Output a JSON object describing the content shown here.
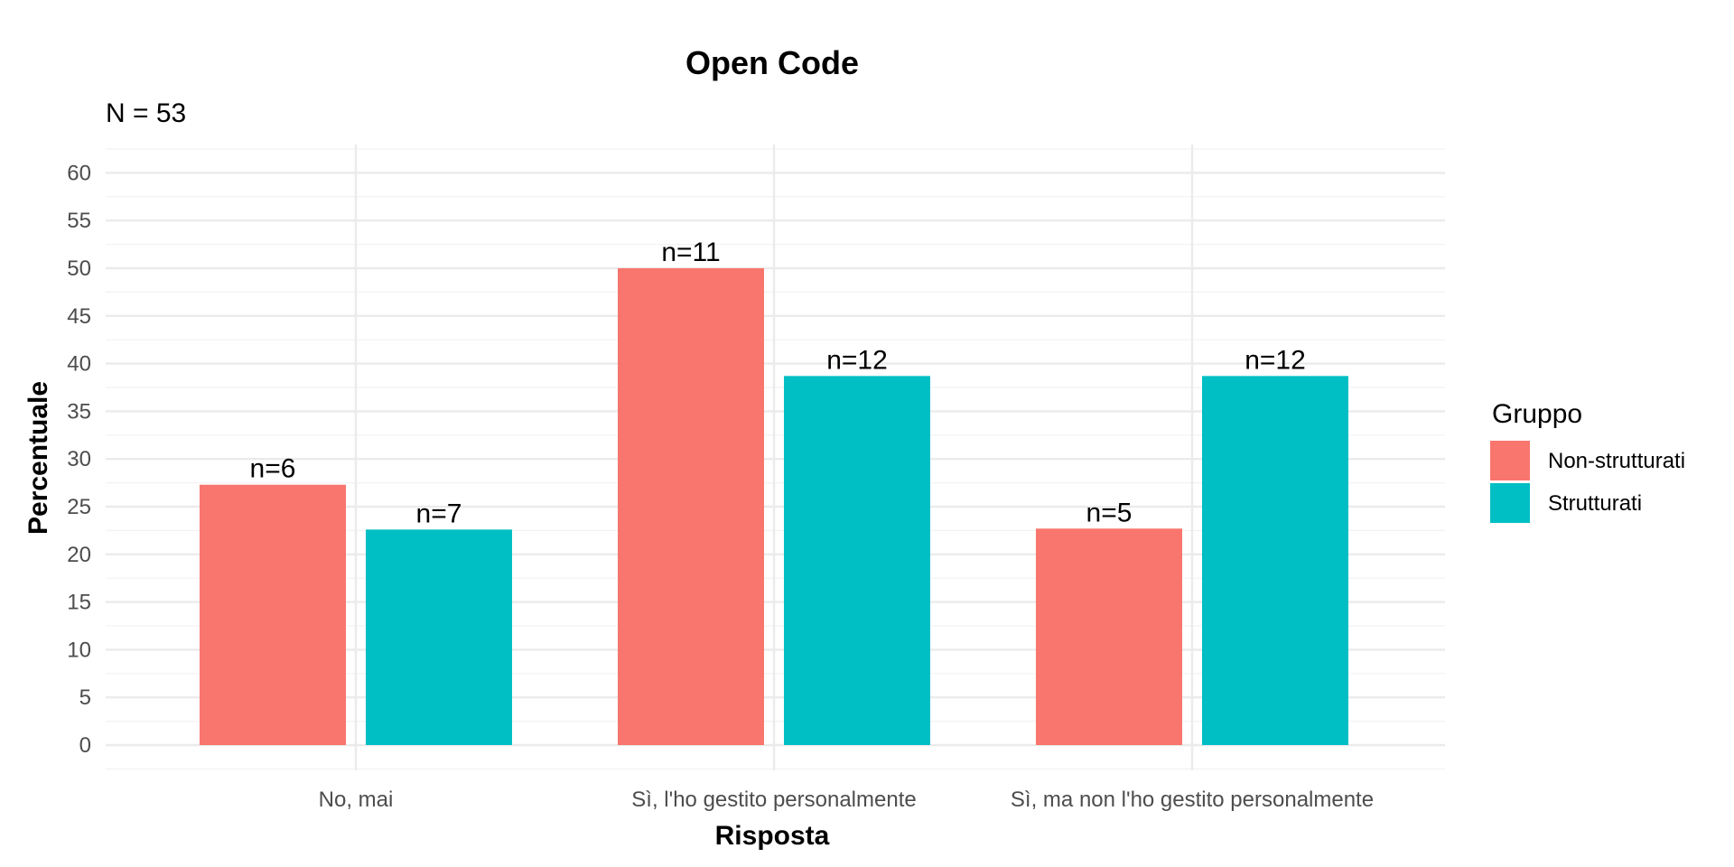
{
  "chart_data": {
    "type": "bar",
    "title": "Open Code",
    "subtitle": "N = 53",
    "xlabel": "Risposta",
    "ylabel": "Percentuale",
    "categories": [
      "No, mai",
      "Sì, l'ho gestito personalmente",
      "Sì, ma non l'ho gestito personalmente"
    ],
    "series": [
      {
        "name": "Non-strutturati",
        "color": "#F8766D",
        "values": [
          27.3,
          50.0,
          22.7
        ],
        "labels": [
          "n=6",
          "n=11",
          "n=5"
        ]
      },
      {
        "name": "Strutturati",
        "color": "#00BFC4",
        "values": [
          22.6,
          38.7,
          38.7
        ],
        "labels": [
          "n=7",
          "n=12",
          "n=12"
        ]
      }
    ],
    "ylim": [
      0,
      60
    ],
    "yticks": [
      0,
      5,
      10,
      15,
      20,
      25,
      30,
      35,
      40,
      45,
      50,
      55,
      60
    ],
    "grid": true,
    "legend": {
      "title": "Gruppo",
      "position": "right"
    }
  }
}
